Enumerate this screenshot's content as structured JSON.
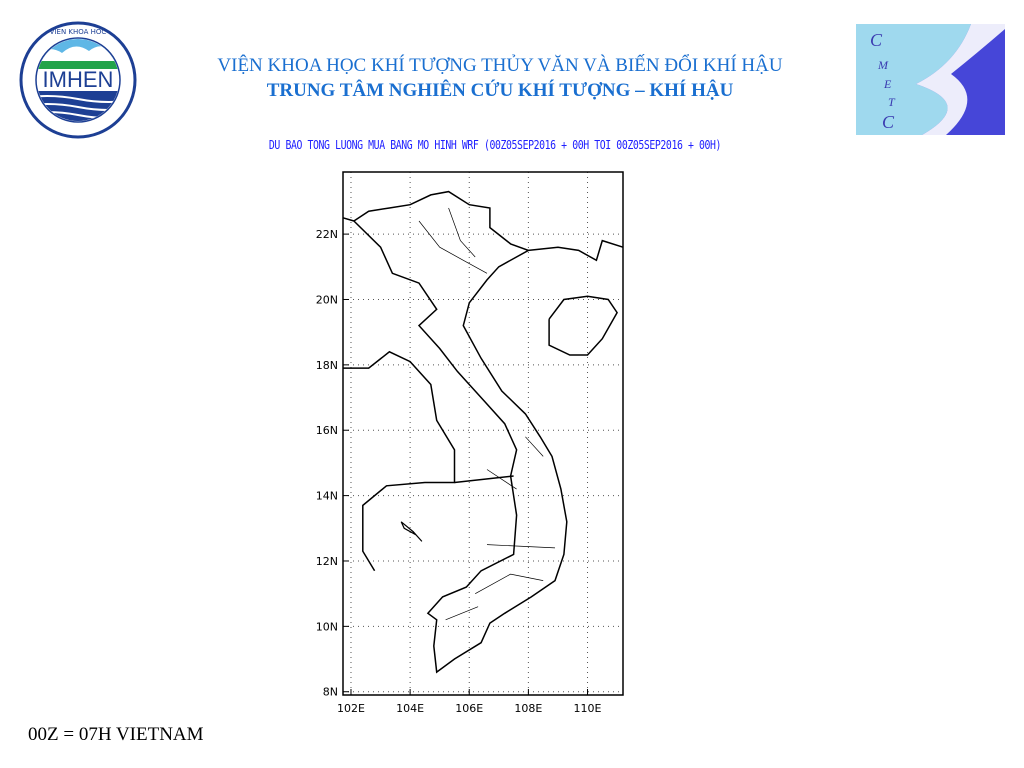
{
  "header": {
    "line1": "VIỆN KHOA HỌC KHÍ TƯỢNG THỦY VĂN VÀ BIẾN ĐỔI KHÍ HẬU",
    "line2": "TRUNG TÂM NGHIÊN CỨU KHÍ TƯỢNG – KHÍ HẬU",
    "accent": "#1a6fd0"
  },
  "logos": {
    "left": {
      "name": "IMHEN",
      "ring_text": "VIỆN KHOA HỌC KHÍ TƯỢNG THỦY VĂN VÀ BIẾN ĐỔI KHÍ HẬU"
    },
    "right": {
      "name": "CMETC",
      "letters": [
        "C",
        "M",
        "E",
        "T",
        "C"
      ]
    }
  },
  "map": {
    "subtitle": "DU BAO TONG LUONG MUA BANG MO HINH WRF (00Z05SEP2016 + 00H TOI 00Z05SEP2016 + 00H)",
    "lat_ticks": [
      "22N",
      "20N",
      "18N",
      "16N",
      "14N",
      "12N",
      "10N",
      "8N"
    ],
    "lon_ticks": [
      "102E",
      "104E",
      "106E",
      "108E",
      "110E"
    ],
    "lat_range": [
      7.9,
      23.9
    ],
    "lon_range": [
      101.73,
      111.2
    ],
    "grid": "dotted"
  },
  "footer": {
    "note": "00Z = 07H VIETNAM"
  }
}
